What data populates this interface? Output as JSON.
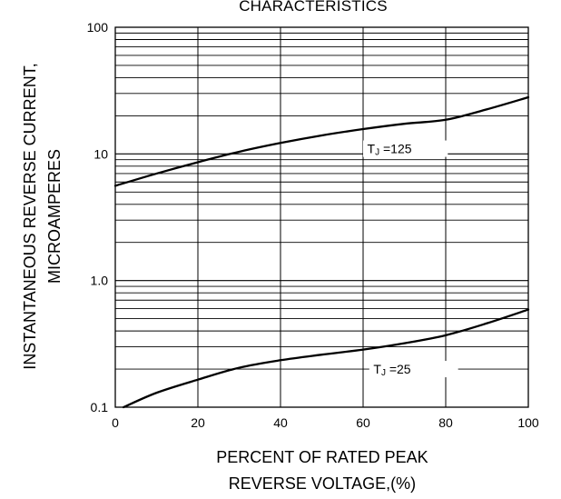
{
  "chart_data": {
    "type": "line",
    "title": "CHARACTERISTICS",
    "xlabel_lines": [
      "PERCENT OF RATED PEAK",
      "REVERSE VOLTAGE,(%)"
    ],
    "ylabel_lines": [
      "INSTANTANEOUS REVERSE CURRENT,",
      "MICROAMPERES"
    ],
    "xlim": [
      0,
      100
    ],
    "ylim": [
      0.1,
      100
    ],
    "yscale": "log",
    "grid": true,
    "x_ticks": [
      0,
      20,
      40,
      60,
      80,
      100
    ],
    "x_tick_labels": [
      "0",
      "20",
      "40",
      "60",
      "80",
      "100"
    ],
    "y_ticks": [
      0.1,
      1,
      10,
      100
    ],
    "y_tick_labels": [
      "0.1",
      "1.0",
      "10",
      "100"
    ],
    "series": [
      {
        "label_parts": [
          "T",
          "J",
          " =125"
        ],
        "x": [
          0,
          10,
          20,
          30,
          40,
          50,
          60,
          70,
          80,
          90,
          100
        ],
        "y": [
          5.6,
          7.0,
          8.6,
          10.4,
          12.2,
          14.0,
          15.7,
          17.3,
          18.6,
          22.5,
          28.0
        ]
      },
      {
        "label_parts": [
          "T",
          "J",
          " =25"
        ],
        "x": [
          2,
          10,
          20,
          30,
          40,
          50,
          60,
          70,
          80,
          90,
          100
        ],
        "y": [
          0.1,
          0.13,
          0.165,
          0.205,
          0.235,
          0.26,
          0.285,
          0.32,
          0.37,
          0.46,
          0.59
        ]
      }
    ]
  }
}
